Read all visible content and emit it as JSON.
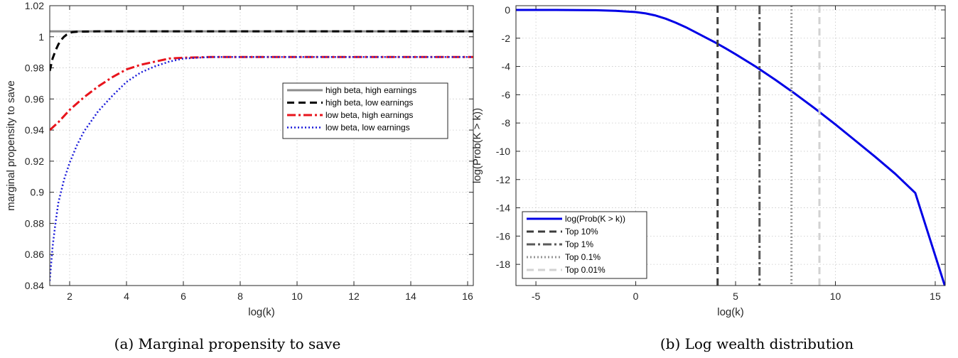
{
  "chart_data": [
    {
      "type": "line",
      "caption": "(a) Marginal propensity to save",
      "xlabel": "log(k)",
      "ylabel": "marginal propensity to save",
      "xlim": [
        1.3,
        16.2
      ],
      "ylim": [
        0.84,
        1.02
      ],
      "xticks": [
        2,
        4,
        6,
        8,
        10,
        12,
        14,
        16
      ],
      "yticks": [
        0.84,
        0.86,
        0.88,
        0.9,
        0.92,
        0.94,
        0.96,
        0.98,
        1,
        1.02
      ],
      "grid": true,
      "legend_position": "right",
      "series": [
        {
          "name": "high beta, high earnings",
          "color": "#8c8c8c",
          "style": "solid",
          "x": [
            1.3,
            2,
            4,
            6,
            8,
            10,
            12,
            14,
            16.2
          ],
          "y": [
            1.0035,
            1.0035,
            1.0035,
            1.0035,
            1.0035,
            1.0035,
            1.0035,
            1.0035,
            1.0035
          ]
        },
        {
          "name": "high beta, low earnings",
          "color": "#000000",
          "style": "dashed",
          "x": [
            1.3,
            1.4,
            1.5,
            1.6,
            1.7,
            1.8,
            1.9,
            2.0,
            2.1,
            2.3,
            3,
            6,
            10,
            16.2
          ],
          "y": [
            0.978,
            0.986,
            0.991,
            0.995,
            0.998,
            1.0,
            1.0015,
            1.0025,
            1.003,
            1.0033,
            1.0035,
            1.0035,
            1.0035,
            1.0035
          ]
        },
        {
          "name": "low beta, high earnings",
          "color": "#e8141c",
          "style": "dashdot",
          "x": [
            1.3,
            1.6,
            2,
            2.5,
            3,
            3.5,
            4,
            4.5,
            5,
            5.5,
            6,
            7,
            8,
            10,
            16.2
          ],
          "y": [
            0.94,
            0.945,
            0.953,
            0.961,
            0.968,
            0.974,
            0.979,
            0.982,
            0.984,
            0.986,
            0.9865,
            0.987,
            0.987,
            0.987,
            0.987
          ]
        },
        {
          "name": "low beta, low earnings",
          "color": "#1a1ad9",
          "style": "dotted",
          "x": [
            1.3,
            1.4,
            1.5,
            1.6,
            1.8,
            2,
            2.25,
            2.5,
            3,
            3.5,
            4,
            4.5,
            5,
            5.5,
            6,
            7,
            8,
            10,
            16.2
          ],
          "y": [
            0.843,
            0.865,
            0.88,
            0.893,
            0.908,
            0.919,
            0.93,
            0.939,
            0.952,
            0.962,
            0.971,
            0.977,
            0.981,
            0.984,
            0.986,
            0.987,
            0.987,
            0.987,
            0.987
          ]
        }
      ]
    },
    {
      "type": "line",
      "caption": "(b) Log wealth distribution",
      "xlabel": "log(k)",
      "ylabel": "log(Prob(K > k))",
      "xlim": [
        -6,
        15.5
      ],
      "ylim": [
        -19.5,
        0.3
      ],
      "xticks": [
        -5,
        0,
        5,
        10,
        15
      ],
      "yticks": [
        0,
        -2,
        -4,
        -6,
        -8,
        -10,
        -12,
        -14,
        -16,
        -18
      ],
      "grid": true,
      "legend_position": "bottom-left",
      "series": [
        {
          "name": "log(Prob(K > k))",
          "color": "#0000e6",
          "style": "solid",
          "x": [
            -6,
            -4,
            -2,
            -1,
            0,
            0.5,
            1,
            1.5,
            2,
            2.5,
            3,
            3.5,
            4,
            4.5,
            5,
            6,
            7,
            8,
            9,
            10,
            11,
            12,
            13,
            14,
            15.5
          ],
          "y": [
            0,
            0,
            -0.02,
            -0.06,
            -0.15,
            -0.25,
            -0.4,
            -0.62,
            -0.9,
            -1.22,
            -1.58,
            -1.95,
            -2.32,
            -2.72,
            -3.13,
            -4.0,
            -4.95,
            -5.95,
            -7.0,
            -8.1,
            -9.25,
            -10.4,
            -11.6,
            -12.95,
            -19.6
          ]
        },
        {
          "name": "Top 10%",
          "color": "#3c3c3c",
          "style": "dashed",
          "vline": 4.1
        },
        {
          "name": "Top 1%",
          "color": "#5a5a5a",
          "style": "dashdot",
          "vline": 6.2
        },
        {
          "name": "Top 0.1%",
          "color": "#969696",
          "style": "dotted",
          "vline": 7.8
        },
        {
          "name": "Top 0.01%",
          "color": "#d2d2d2",
          "style": "dashed",
          "vline": 9.2
        }
      ]
    }
  ]
}
